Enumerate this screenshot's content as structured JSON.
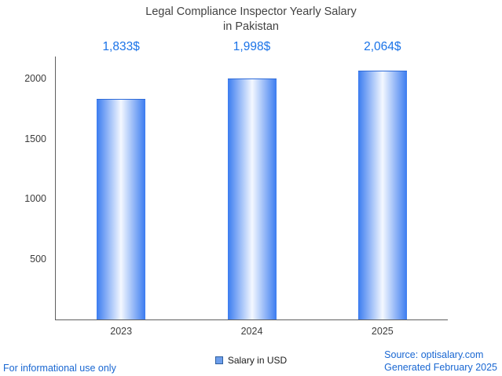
{
  "title": {
    "line1": "Legal Compliance Inspector Yearly Salary",
    "line2": "in Pakistan"
  },
  "chart_data": {
    "type": "bar",
    "title": "Legal Compliance Inspector Yearly Salary in Pakistan",
    "categories": [
      "2023",
      "2024",
      "2025"
    ],
    "values": [
      1833,
      1998,
      2064
    ],
    "value_labels": [
      "1,833$",
      "1,998$",
      "2,064$"
    ],
    "xlabel": "",
    "ylabel": "",
    "yticks": [
      500,
      1000,
      1500,
      2000
    ],
    "ylim": [
      0,
      2182
    ],
    "grid": false,
    "legend_position": "bottom",
    "legend": [
      {
        "label": "Salary in USD",
        "color": "#6d9eeb"
      }
    ],
    "bar_gradient": [
      "#3b7cf0",
      "#f4f8ff",
      "#3b7cf0"
    ]
  },
  "footer": {
    "disclaimer": "For informational use only",
    "source": "Source: optisalary.com",
    "generated": "Generated February 2025"
  },
  "colors": {
    "accent_blue": "#1a73e8",
    "footer_blue": "#1967d2",
    "axis": "#5f5f5f",
    "title_text": "#424242"
  }
}
